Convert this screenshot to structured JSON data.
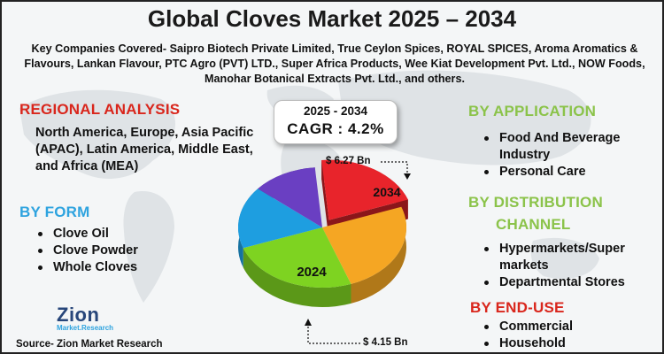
{
  "title": "Global Cloves Market  2025 – 2034",
  "companies": "Key Companies Covered- Saipro Biotech Private Limited, True Ceylon Spices, ROYAL SPICES, Aroma Aromatics & Flavours, Lankan Flavour, PTC Agro (PVT) LTD., Super Africa Products, Wee Kiat Development Pvt. Ltd., NOW Foods, Manohar Botanical Extracts Pvt. Ltd., and others.",
  "regional": {
    "heading": "REGIONAL ANALYSIS",
    "text": "North America, Europe, Asia Pacific (APAC), Latin America, Middle East, and Africa (MEA)"
  },
  "form": {
    "heading": "BY FORM",
    "items": [
      "Clove Oil",
      "Clove Powder",
      "Whole Cloves"
    ]
  },
  "cagr": {
    "years": "2025 - 2034",
    "value": "CAGR : 4.2%"
  },
  "pie": {
    "label_2034": "2034",
    "label_2024": "2024",
    "value_2034": "$ 6.27 Bn",
    "value_2024": "$ 4.15 Bn",
    "colors": [
      "#e8242b",
      "#f5a623",
      "#7ed321",
      "#1e9ee0",
      "#6a3fc2"
    ]
  },
  "application": {
    "heading": "BY APPLICATION",
    "items": [
      "Food And Beverage Industry",
      "Personal Care"
    ]
  },
  "distribution": {
    "heading_line1": "BY DISTRIBUTION",
    "heading_line2": "CHANNEL",
    "items": [
      "Hypermarkets/Super markets",
      "Departmental Stores"
    ]
  },
  "enduse": {
    "heading": "BY END-USE",
    "items": [
      "Commercial",
      "Household"
    ]
  },
  "logo": {
    "main": "Zion",
    "sub": "Market.Research"
  },
  "source": "Source- Zion Market Research"
}
